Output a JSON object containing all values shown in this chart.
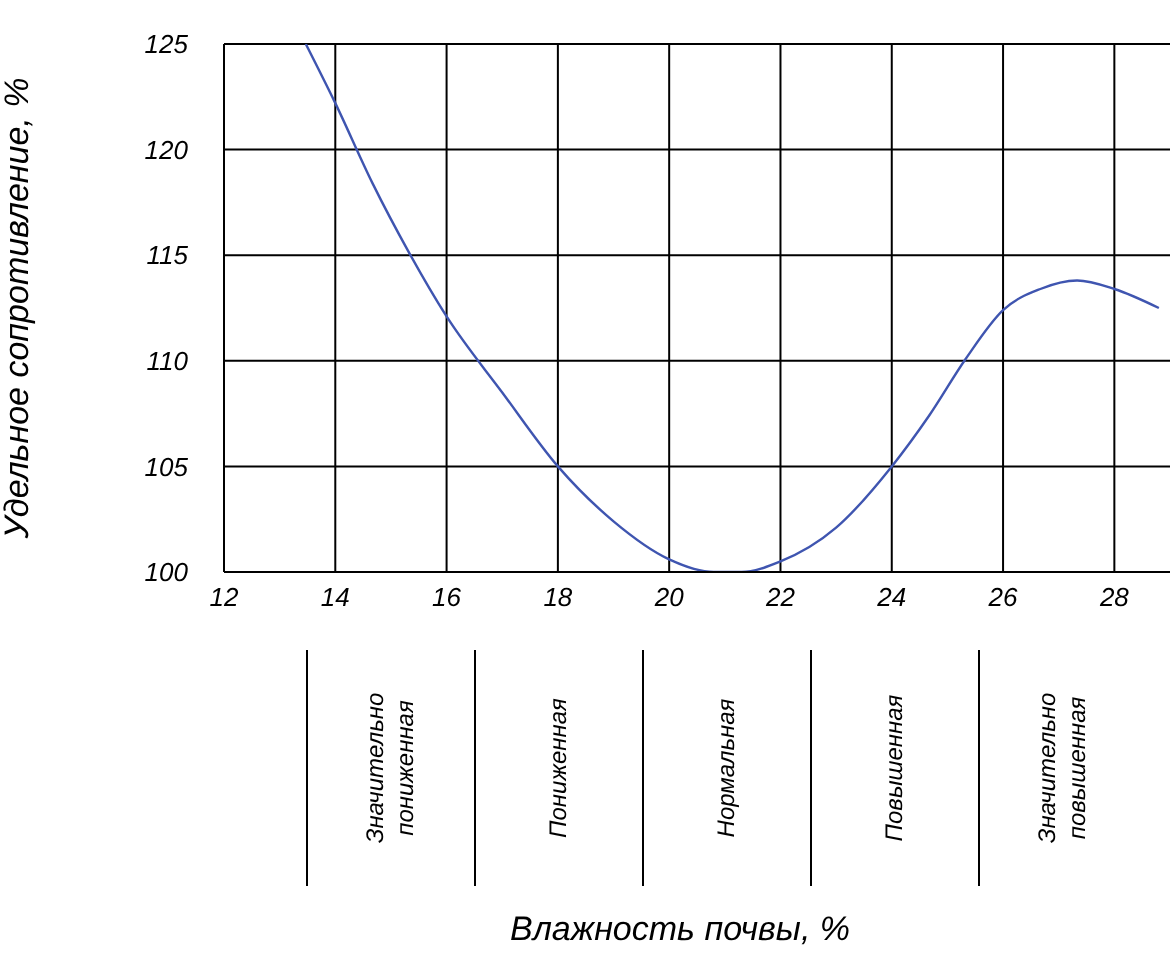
{
  "chart_data": {
    "type": "line",
    "ylabel": "Удельное сопротивление, %",
    "x": [
      13.47,
      14,
      14.67,
      15.33,
      16,
      17,
      18,
      19,
      20,
      20.8,
      21.3,
      22,
      23,
      24,
      24.67,
      25.33,
      26,
      26.67,
      27.33,
      28,
      28.8
    ],
    "series": [
      {
        "color": "#3f55b0",
        "values": [
          125,
          122.2,
          118.4,
          115.1,
          112.1,
          108.5,
          105,
          102.4,
          100.6,
          100,
          100,
          100.5,
          102.1,
          105,
          107.4,
          110.1,
          112.4,
          113.4,
          113.8,
          113.4,
          112.5
        ]
      }
    ],
    "xlim": [
      12,
      29
    ],
    "xticks": [
      12,
      14,
      16,
      18,
      20,
      22,
      24,
      26,
      28
    ],
    "ylim": [
      100,
      125
    ],
    "yticks": [
      100,
      105,
      110,
      115,
      120,
      125
    ],
    "grid": true,
    "legend": false,
    "marker": "none",
    "line_style": "solid",
    "annotations": [
      "Значительно пониженная",
      "Пониженная",
      "Нормальная",
      "Повышенная",
      "Значительно повышенная",
      "Влажность почвы, %"
    ]
  }
}
